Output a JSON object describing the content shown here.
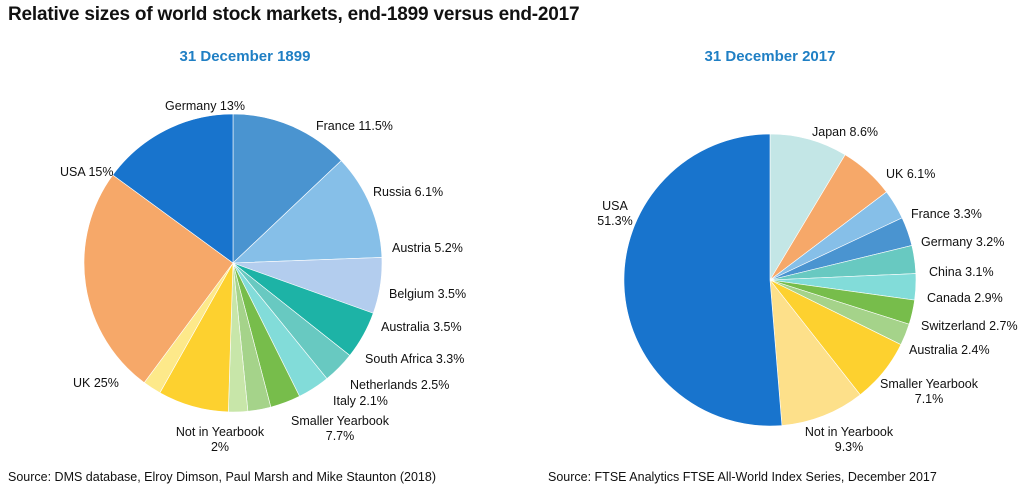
{
  "title": "Relative sizes of world stock markets, end-1899 versus end-2017",
  "chart_data": [
    {
      "type": "pie",
      "title": "31 December 1899",
      "source": "Source:  DMS database, Elroy Dimson, Paul Marsh and Mike Staunton (2018)",
      "slices": [
        {
          "label": "Germany 13%",
          "value": 13,
          "color": "#4a94d0"
        },
        {
          "label": "France 11.5%",
          "value": 11.5,
          "color": "#86bfe8"
        },
        {
          "label": "Russia 6.1%",
          "value": 6.1,
          "color": "#b3cdee"
        },
        {
          "label": "Austria 5.2%",
          "value": 5.2,
          "color": "#1db3a6"
        },
        {
          "label": "Belgium 3.5%",
          "value": 3.5,
          "color": "#68c9c1"
        },
        {
          "label": "Australia 3.5%",
          "value": 3.5,
          "color": "#82dcd9"
        },
        {
          "label": "South Africa 3.3%",
          "value": 3.3,
          "color": "#77bd4b"
        },
        {
          "label": "Netherlands 2.5%",
          "value": 2.5,
          "color": "#a5d38a"
        },
        {
          "label": "Italy 2.1%",
          "value": 2.1,
          "color": "#c8e6a9"
        },
        {
          "label": [
            "Smaller Yearbook",
            "7.7%"
          ],
          "value": 7.7,
          "color": "#fdd12f"
        },
        {
          "label": [
            "Not in Yearbook",
            "2%"
          ],
          "value": 2,
          "color": "#fde98a"
        },
        {
          "label": "UK 25%",
          "value": 25,
          "color": "#f6a869"
        },
        {
          "label": "USA 15%",
          "value": 15,
          "color": "#1874cd"
        }
      ]
    },
    {
      "type": "pie",
      "title": "31 December 2017",
      "source": "Source: FTSE Analytics FTSE All-World Index Series, December 2017",
      "slices": [
        {
          "label": "Japan  8.6%",
          "value": 8.6,
          "color": "#c3e6e6"
        },
        {
          "label": "UK 6.1%",
          "value": 6.1,
          "color": "#f6a869"
        },
        {
          "label": "France  3.3%",
          "value": 3.3,
          "color": "#86bfe8"
        },
        {
          "label": "Germany  3.2%",
          "value": 3.2,
          "color": "#4a94d0"
        },
        {
          "label": "China  3.1%",
          "value": 3.1,
          "color": "#68c9c1"
        },
        {
          "label": "Canada  2.9%",
          "value": 2.9,
          "color": "#82dcd9"
        },
        {
          "label": "Switzerland  2.7%",
          "value": 2.7,
          "color": "#77bd4b"
        },
        {
          "label": "Australia  2.4%",
          "value": 2.4,
          "color": "#a5d38a"
        },
        {
          "label": [
            "Smaller  Yearbook",
            "7.1%"
          ],
          "value": 7.1,
          "color": "#fdd12f"
        },
        {
          "label": [
            "Not in Yearbook",
            "9.3%"
          ],
          "value": 9.3,
          "color": "#fde08a"
        },
        {
          "label": [
            "USA",
            "51.3%"
          ],
          "value": 51.3,
          "color": "#1874cd"
        }
      ]
    }
  ]
}
